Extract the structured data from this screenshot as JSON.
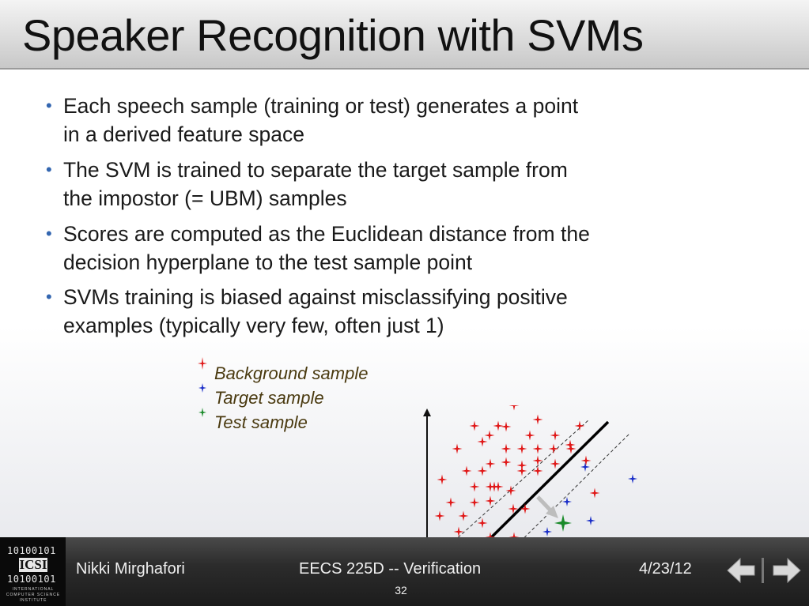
{
  "slide": {
    "title": "Speaker Recognition with SVMs",
    "bullets": [
      {
        "line1": "Each speech sample (training or test) generates a point",
        "line2": "in a derived feature space"
      },
      {
        "line1": "The SVM is trained to separate the target sample from",
        "line2": "the impostor (= UBM) samples"
      },
      {
        "line1": "Scores are computed as the Euclidean distance from the",
        "line2": "decision hyperplane to the test sample point"
      },
      {
        "line1": "SVMs training is biased against misclassifying positive",
        "line2": "examples (typically very few, often just 1)"
      }
    ],
    "bullet_symbol": "•"
  },
  "legend": {
    "background": "Background sample",
    "target": "Target sample",
    "test": "Test sample"
  },
  "colors": {
    "background_sample": "#e01818",
    "target_sample": "#1a2ec8",
    "test_sample": "#1a8a2a",
    "bullet_dot": "#3366b0"
  },
  "footer": {
    "logo": {
      "row1": "10100101",
      "row2": "10100101",
      "mark": "ICSI",
      "caption1": "INTERNATIONAL",
      "caption2": "COMPUTER SCIENCE",
      "caption3": "INSTITUTE"
    },
    "author": "Nikki Mirghafori",
    "course": "EECS 225D -- Verification",
    "date": "4/23/12",
    "page": "32"
  },
  "icons": {
    "prev": "arrow-left-icon",
    "next": "arrow-right-icon"
  }
}
